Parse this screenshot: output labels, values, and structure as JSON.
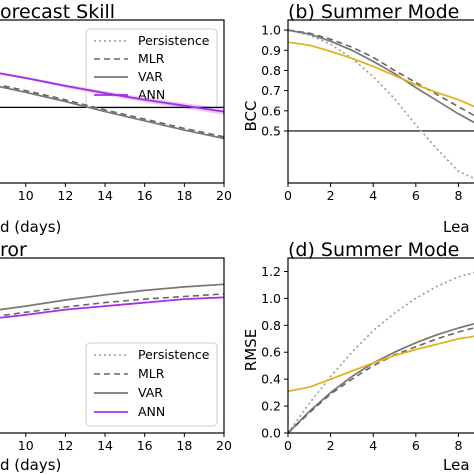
{
  "colors": {
    "persistence": "#999999",
    "mlr": "#666666",
    "var": "#777777",
    "ann": "#a42ee8",
    "summer": "#e0b116",
    "ref": "#000000"
  },
  "chart_data": [
    {
      "id": "a",
      "type": "line",
      "title": "orecast Skill",
      "xlabel": "d (days)",
      "xlim": [
        8.4,
        20
      ],
      "ylim": [
        0.05,
        1.02
      ],
      "xticks": [
        "10",
        "12",
        "14",
        "16",
        "18",
        "20"
      ],
      "hline": 0.5,
      "legend": {
        "position": "top-right",
        "entries": [
          "Persistence",
          "MLR",
          "VAR",
          "ANN"
        ]
      },
      "series": [
        {
          "name": "MLR",
          "x": [
            8.4,
            10,
            12,
            14,
            16,
            18,
            20
          ],
          "y": [
            0.64,
            0.6,
            0.545,
            0.485,
            0.43,
            0.375,
            0.325
          ]
        },
        {
          "name": "VAR",
          "x": [
            8.4,
            10,
            12,
            14,
            16,
            18,
            20
          ],
          "y": [
            0.63,
            0.59,
            0.535,
            0.475,
            0.42,
            0.365,
            0.315
          ]
        },
        {
          "name": "ANN",
          "x": [
            8.4,
            10,
            12,
            14,
            16,
            18,
            20
          ],
          "y": [
            0.708,
            0.675,
            0.628,
            0.585,
            0.545,
            0.51,
            0.475
          ]
        }
      ]
    },
    {
      "id": "b",
      "type": "line",
      "title": "(b) Summer Mode",
      "xlabel": "Lea",
      "ylabel": "BCC",
      "xlim": [
        0,
        9.2
      ],
      "ylim": [
        0.242,
        1.05
      ],
      "xticks": [
        "0",
        "2",
        "4",
        "6",
        "8"
      ],
      "yticks": [
        "0.5",
        "0.6",
        "0.7",
        "0.8",
        "0.9",
        "1.0"
      ],
      "hline": 0.5,
      "series": [
        {
          "name": "Persistence",
          "x": [
            0,
            1,
            2,
            3,
            4,
            5,
            6,
            7,
            8,
            9.2
          ],
          "y": [
            1.0,
            0.975,
            0.93,
            0.86,
            0.77,
            0.66,
            0.53,
            0.41,
            0.3,
            0.242
          ]
        },
        {
          "name": "MLR",
          "x": [
            0,
            1,
            2,
            3,
            4,
            5,
            6,
            7,
            8,
            9.2
          ],
          "y": [
            1.0,
            0.985,
            0.955,
            0.915,
            0.865,
            0.8,
            0.74,
            0.68,
            0.62,
            0.55
          ]
        },
        {
          "name": "VAR",
          "x": [
            0,
            1,
            2,
            3,
            4,
            5,
            6,
            7,
            8,
            9.2
          ],
          "y": [
            1.0,
            0.98,
            0.945,
            0.9,
            0.845,
            0.785,
            0.715,
            0.65,
            0.585,
            0.515
          ]
        },
        {
          "name": "Summer",
          "x": [
            0,
            1,
            2,
            3,
            4,
            5,
            6,
            7,
            8,
            9.2
          ],
          "y": [
            0.94,
            0.925,
            0.895,
            0.86,
            0.82,
            0.775,
            0.73,
            0.69,
            0.655,
            0.6
          ]
        }
      ]
    },
    {
      "id": "c",
      "type": "line",
      "title": "ror",
      "xlabel": "d (days)",
      "xlim": [
        8.4,
        20
      ],
      "ylim": [
        0,
        1.0
      ],
      "xticks": [
        "10",
        "12",
        "14",
        "16",
        "18",
        "20"
      ],
      "legend": {
        "position": "bottom-right",
        "entries": [
          "Persistence",
          "MLR",
          "VAR",
          "ANN"
        ]
      },
      "series": [
        {
          "name": "VAR",
          "x": [
            8.4,
            10,
            12,
            14,
            16,
            18,
            20
          ],
          "y": [
            0.7,
            0.725,
            0.76,
            0.79,
            0.815,
            0.835,
            0.85
          ]
        },
        {
          "name": "MLR",
          "x": [
            8.4,
            10,
            12,
            14,
            16,
            18,
            20
          ],
          "y": [
            0.665,
            0.69,
            0.72,
            0.745,
            0.765,
            0.78,
            0.795
          ]
        },
        {
          "name": "ANN",
          "x": [
            8.4,
            10,
            12,
            14,
            16,
            18,
            20
          ],
          "y": [
            0.655,
            0.675,
            0.705,
            0.725,
            0.745,
            0.765,
            0.775
          ]
        }
      ]
    },
    {
      "id": "d",
      "type": "line",
      "title": "(d) Summer Mode",
      "xlabel": "Lea",
      "ylabel": "RMSE",
      "xlim": [
        0,
        9.2
      ],
      "ylim": [
        0,
        1.3
      ],
      "xticks": [
        "0",
        "2",
        "4",
        "6",
        "8"
      ],
      "yticks": [
        "0.0",
        "0.2",
        "0.4",
        "0.6",
        "0.8",
        "1.0",
        "1.2"
      ],
      "series": [
        {
          "name": "Persistence",
          "x": [
            0,
            1,
            2,
            3,
            4,
            5,
            6,
            7,
            8,
            9.2
          ],
          "y": [
            0,
            0.22,
            0.42,
            0.6,
            0.76,
            0.89,
            1.0,
            1.09,
            1.16,
            1.21
          ]
        },
        {
          "name": "VAR",
          "x": [
            0,
            1,
            2,
            3,
            4,
            5,
            6,
            7,
            8,
            9.2
          ],
          "y": [
            0,
            0.16,
            0.3,
            0.42,
            0.52,
            0.6,
            0.67,
            0.73,
            0.78,
            0.83
          ]
        },
        {
          "name": "MLR",
          "x": [
            0,
            1,
            2,
            3,
            4,
            5,
            6,
            7,
            8,
            9.2
          ],
          "y": [
            0,
            0.15,
            0.29,
            0.4,
            0.5,
            0.58,
            0.64,
            0.7,
            0.75,
            0.8
          ]
        },
        {
          "name": "Summer",
          "x": [
            0,
            1,
            2,
            3,
            4,
            5,
            6,
            7,
            8,
            9.2
          ],
          "y": [
            0.31,
            0.34,
            0.4,
            0.46,
            0.52,
            0.575,
            0.62,
            0.66,
            0.7,
            0.73
          ]
        }
      ]
    }
  ]
}
